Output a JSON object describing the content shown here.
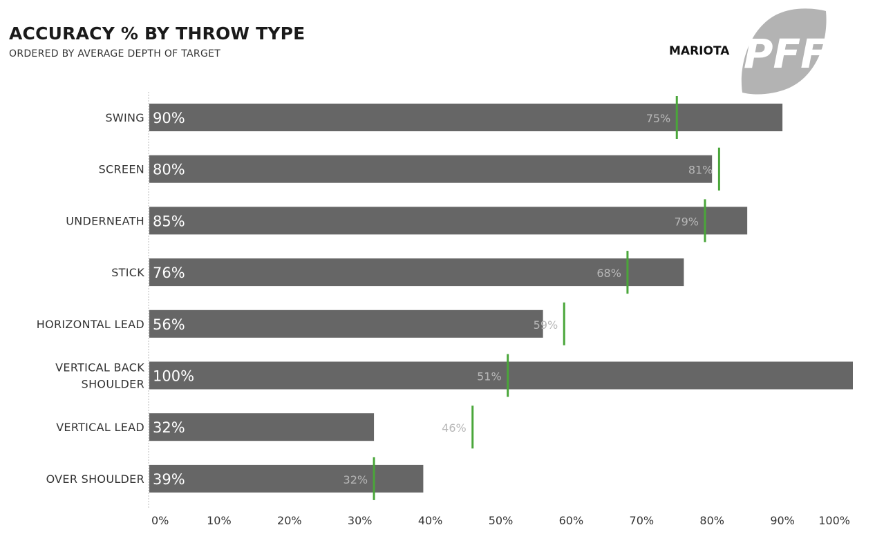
{
  "header": {
    "title": "ACCURACY % BY THROW TYPE",
    "subtitle": "ORDERED BY AVERAGE DEPTH OF TARGET",
    "player": "MARIOTA",
    "logo_text": "PFF"
  },
  "colors": {
    "bar": "#666666",
    "marker": "#4aa63a",
    "bar_label": "#ffffff",
    "marker_label": "#b8b8b8",
    "text": "#333333",
    "logo": "#b3b3b3"
  },
  "chart_data": {
    "type": "bar",
    "orientation": "horizontal",
    "categories": [
      [
        "SWING"
      ],
      [
        "SCREEN"
      ],
      [
        "UNDERNEATH"
      ],
      [
        "STICK"
      ],
      [
        "HORIZONTAL LEAD"
      ],
      [
        "VERTICAL BACK",
        "SHOULDER"
      ],
      [
        "VERTICAL LEAD"
      ],
      [
        "OVER SHOULDER"
      ]
    ],
    "values": [
      90,
      80,
      85,
      76,
      56,
      100,
      32,
      39
    ],
    "value_labels": [
      "90%",
      "80%",
      "85%",
      "76%",
      "56%",
      "100%",
      "32%",
      "39%"
    ],
    "reference": {
      "values": [
        75,
        81,
        79,
        68,
        59,
        51,
        46,
        32
      ],
      "labels": [
        "75%",
        "81%",
        "79%",
        "68%",
        "59%",
        "51%",
        "46%",
        "32%"
      ]
    },
    "xlim": [
      0,
      100
    ],
    "xticks": [
      0,
      10,
      20,
      30,
      40,
      50,
      60,
      70,
      80,
      90,
      100
    ],
    "xtick_labels": [
      "0%",
      "10%",
      "20%",
      "30%",
      "40%",
      "50%",
      "60%",
      "70%",
      "80%",
      "90%",
      "100%"
    ],
    "grid": false,
    "title": "ACCURACY % BY THROW TYPE",
    "subtitle": "ORDERED BY AVERAGE DEPTH OF TARGET",
    "xlabel": "",
    "ylabel": ""
  }
}
